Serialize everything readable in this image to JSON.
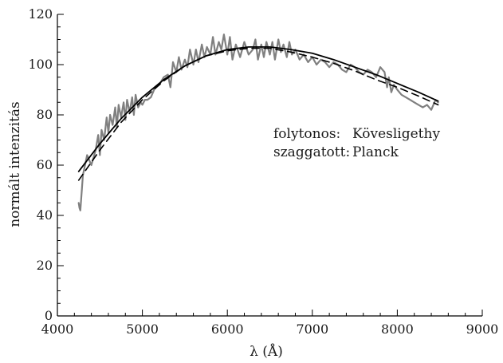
{
  "chart_data": {
    "type": "line",
    "title": "",
    "xlabel": "λ (Å)",
    "ylabel": "normált intenzitás",
    "xlim": [
      4000,
      9000
    ],
    "ylim": [
      0,
      120
    ],
    "x_ticks": [
      "4000",
      "5000",
      "6000",
      "7000",
      "8000",
      "9000"
    ],
    "y_ticks": [
      "0",
      "20",
      "40",
      "60",
      "80",
      "100",
      "120"
    ],
    "grid": false,
    "legend": {
      "placement": "center-right",
      "lines": [
        {
          "label": "folytonos:",
          "value": "Kövesligethy"
        },
        {
          "label": "szaggatott:",
          "value": "Planck"
        }
      ]
    },
    "series": [
      {
        "style": "gray-noisy",
        "color": "#808080",
        "x": [
          4250,
          4260,
          4270,
          4300,
          4350,
          4400,
          4450,
          4480,
          4500,
          4520,
          4550,
          4580,
          4600,
          4620,
          4650,
          4680,
          4700,
          4720,
          4750,
          4780,
          4800,
          4820,
          4850,
          4880,
          4900,
          4920,
          4950,
          4980,
          5000,
          5030,
          5060,
          5100,
          5150,
          5200,
          5250,
          5300,
          5330,
          5360,
          5400,
          5430,
          5460,
          5500,
          5530,
          5560,
          5600,
          5630,
          5660,
          5700,
          5730,
          5760,
          5800,
          5830,
          5860,
          5900,
          5930,
          5960,
          6000,
          6030,
          6060,
          6100,
          6150,
          6200,
          6250,
          6300,
          6330,
          6360,
          6400,
          6430,
          6460,
          6500,
          6530,
          6560,
          6600,
          6630,
          6660,
          6700,
          6730,
          6760,
          6800,
          6850,
          6900,
          6950,
          7000,
          7050,
          7100,
          7150,
          7200,
          7250,
          7300,
          7350,
          7400,
          7450,
          7500,
          7550,
          7600,
          7650,
          7700,
          7750,
          7800,
          7850,
          7880,
          7900,
          7930,
          7960,
          8000,
          8050,
          8100,
          8150,
          8200,
          8250,
          8300,
          8350,
          8400,
          8450,
          8480
        ],
        "y": [
          45,
          43,
          42,
          56,
          64,
          60,
          66,
          72,
          64,
          74,
          70,
          79,
          73,
          80,
          76,
          83,
          75,
          84,
          79,
          85,
          78,
          86,
          81,
          87,
          80,
          88,
          83,
          85,
          84,
          86,
          86,
          87,
          91,
          92,
          95,
          96,
          91,
          101,
          97,
          103,
          98,
          102,
          99,
          106,
          100,
          106,
          101,
          108,
          103,
          107,
          104,
          111,
          104,
          109,
          106,
          112,
          104,
          111,
          102,
          108,
          103,
          109,
          104,
          106,
          110,
          102,
          108,
          103,
          109,
          104,
          109,
          102,
          110,
          105,
          108,
          103,
          109,
          104,
          106,
          102,
          104,
          101,
          103,
          100,
          102,
          101,
          99,
          101,
          100,
          98,
          97,
          100,
          99,
          97,
          96,
          98,
          97,
          95,
          99,
          97,
          91,
          95,
          89,
          92,
          90,
          88,
          87,
          86,
          85,
          84,
          83,
          84,
          82,
          86,
          85
        ]
      },
      {
        "style": "solid",
        "color": "#000000",
        "x": [
          4250,
          4500,
          4750,
          5000,
          5250,
          5500,
          5750,
          6000,
          6250,
          6500,
          6750,
          7000,
          7250,
          7500,
          7750,
          8000,
          8250,
          8480
        ],
        "y": [
          57.5,
          68.5,
          78.5,
          87,
          94,
          99.5,
          103.5,
          106,
          107,
          107,
          106,
          104.5,
          102,
          99,
          96,
          92.5,
          89,
          85.5
        ]
      },
      {
        "style": "dashed",
        "color": "#000000",
        "x": [
          4250,
          4500,
          4750,
          5000,
          5250,
          5500,
          5750,
          6000,
          6250,
          6500,
          6750,
          7000,
          7250,
          7500,
          7750,
          8000,
          8250,
          8480
        ],
        "y": [
          54,
          66,
          77,
          86,
          93.5,
          99.5,
          103.5,
          105.5,
          106.5,
          106.5,
          105,
          103,
          100.5,
          97.5,
          94,
          91,
          87.5,
          84
        ]
      }
    ]
  }
}
